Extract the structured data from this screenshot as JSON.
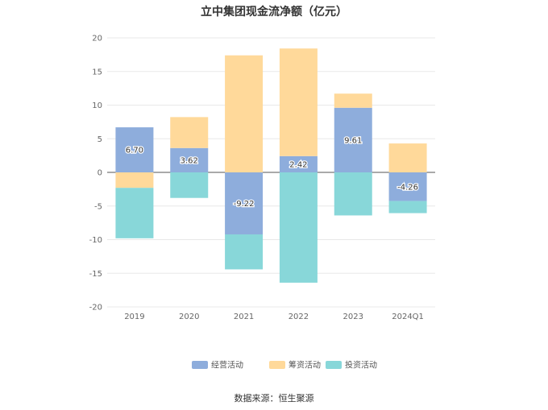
{
  "title": "立中集团现金流净额（亿元）",
  "source": "数据来源：恒生聚源",
  "colors": {
    "operating": "#8EADDC",
    "financing": "#FFD99A",
    "investing": "#88D7D9",
    "grid": "#E8E8E8",
    "axis": "#666666"
  },
  "chart_data": {
    "type": "bar",
    "stacked": true,
    "title": "立中集团现金流净额（亿元）",
    "categories": [
      "2019",
      "2020",
      "2021",
      "2022",
      "2023",
      "2024Q1"
    ],
    "ylim": [
      -20,
      20
    ],
    "yticks": [
      20,
      15,
      10,
      5,
      0,
      -5,
      -10,
      -15,
      -20
    ],
    "grid": true,
    "legend_position": "bottom",
    "series": [
      {
        "name": "经营活动",
        "key": "operating",
        "values": [
          6.7,
          3.62,
          -9.22,
          2.42,
          9.61,
          -4.26
        ],
        "show_labels": true
      },
      {
        "name": "筹资活动",
        "key": "financing",
        "values": [
          -2.3,
          4.6,
          17.4,
          16.0,
          2.1,
          4.3
        ]
      },
      {
        "name": "投资活动",
        "key": "investing",
        "values": [
          -7.5,
          -3.8,
          -5.2,
          -16.4,
          -6.4,
          -1.8
        ]
      }
    ]
  }
}
